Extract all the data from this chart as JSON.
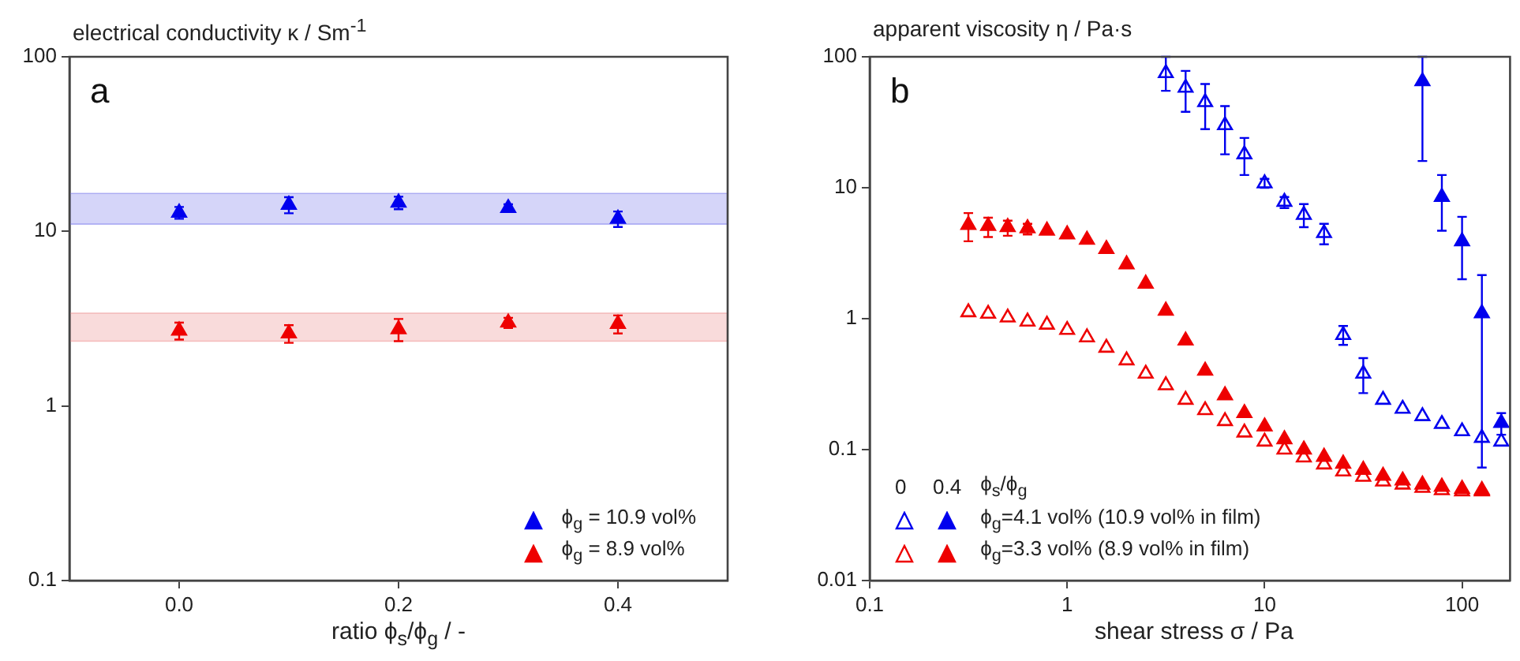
{
  "chart_data": [
    {
      "type": "scatter",
      "ylabel": "electrical conductivity κ / Sm$^{-1}$",
      "xlabel": "ratio ϕ$_{s}$/ϕ$_{g}$ / -",
      "annotations": [
        "a"
      ],
      "x": [
        0,
        0.1,
        0.2,
        0.3,
        0.4
      ],
      "series": [
        {
          "name": "ϕ$_{g}$ = 10.9 vol%",
          "color": "#0000ee",
          "values": [
            12.8,
            14.2,
            14.6,
            13.6,
            11.8
          ],
          "errors": [
            1,
            1.5,
            1.2,
            0.7,
            1.2
          ]
        },
        {
          "name": "ϕ$_{g}$ = 8.9 vol%",
          "color": "#ee0000",
          "values": [
            2.7,
            2.6,
            2.75,
            3.0,
            2.95
          ],
          "errors": [
            0.3,
            0.3,
            0.4,
            0.2,
            0.35
          ]
        }
      ],
      "bands": [
        {
          "axis": "y",
          "from": 11,
          "to": 16.5,
          "color": "#8888ee"
        },
        {
          "axis": "y",
          "from": 2.35,
          "to": 3.4,
          "color": "#ee9999"
        }
      ],
      "xlim": [
        -0.1,
        0.5
      ],
      "xticks": [
        {
          "value": 0,
          "label": "0.0"
        },
        0.2,
        0.4
      ],
      "ylim": [
        0.1,
        100
      ],
      "yticks": [
        0.1,
        1,
        10,
        100
      ],
      "log": "y",
      "grid": false,
      "legend": "bottom right",
      "marker": "triangle"
    },
    {
      "type": "scatter",
      "ylabel": "apparent viscosity η / Pa·s",
      "xlabel": "shear stress σ / Pa",
      "annotations": [
        "b",
        "0",
        "0.4"
      ],
      "legend_title": "ϕ$_{s}$/ϕ$_{g}$",
      "series": [
        {
          "color": "#0000ee",
          "x": [
            3.16,
            3.98,
            5,
            6.3,
            7.9,
            10,
            12.6,
            15.8,
            20,
            25,
            31.6,
            39.8,
            50,
            63,
            79,
            100,
            126,
            158
          ],
          "values": [
            75,
            58,
            45,
            30,
            18,
            10.8,
            7.8,
            6.2,
            4.5,
            0.75,
            0.38,
            0.24,
            0.205,
            0.18,
            0.157,
            0.138,
            0.123,
            0.115
          ],
          "errors": [
            [
              55,
              100
            ],
            [
              38,
              78
            ],
            [
              28,
              62
            ],
            [
              18,
              42
            ],
            [
              12.5,
              24
            ],
            [
              10,
              11.7
            ],
            [
              7,
              8.5
            ],
            [
              5,
              7.5
            ],
            [
              3.7,
              5.3
            ],
            [
              0.63,
              0.88
            ],
            [
              0.27,
              0.5
            ],
            null,
            null,
            null,
            null,
            null,
            null,
            null
          ]
        },
        {
          "name": "ϕ$_{g}$=4.1 vol% (10.9 vol% in film)",
          "color": "#0000ee",
          "x": [
            63,
            79,
            100,
            126,
            158
          ],
          "values": [
            65,
            8.5,
            3.9,
            1.1,
            0.16
          ],
          "errors": [
            [
              16,
              100
            ],
            [
              4.7,
              12.5
            ],
            [
              2,
              6
            ],
            [
              0.073,
              2.15
            ],
            [
              0.13,
              0.19
            ]
          ]
        },
        {
          "color": "#ee0000",
          "x": [
            0.316,
            0.398,
            0.5,
            0.63,
            0.79,
            1,
            1.26,
            1.58,
            2,
            2.5,
            3.16,
            3.98,
            5,
            6.3,
            7.9,
            10,
            12.6,
            15.8,
            20,
            25,
            31.6,
            39.8,
            50,
            63,
            79,
            100,
            126
          ],
          "values": [
            1.12,
            1.09,
            1.02,
            0.95,
            0.9,
            0.82,
            0.72,
            0.6,
            0.48,
            0.38,
            0.31,
            0.24,
            0.2,
            0.165,
            0.135,
            0.115,
            0.1,
            0.087,
            0.077,
            0.068,
            0.062,
            0.057,
            0.054,
            0.051,
            0.049,
            0.048,
            0.048
          ]
        },
        {
          "name": "ϕ$_{g}$=3.3 vol% (8.9 vol% in film)",
          "color": "#ee0000",
          "x": [
            0.316,
            0.398,
            0.5,
            0.63,
            0.79,
            1,
            1.26,
            1.58,
            2,
            2.5,
            3.16,
            3.98,
            5,
            6.3,
            7.9,
            10,
            12.6,
            15.8,
            20,
            25,
            31.6,
            39.8,
            50,
            63,
            79,
            100,
            126
          ],
          "values": [
            5.2,
            5.1,
            5,
            4.9,
            4.7,
            4.4,
            4,
            3.4,
            2.6,
            1.85,
            1.15,
            0.68,
            0.4,
            0.26,
            0.19,
            0.15,
            0.12,
            0.1,
            0.088,
            0.078,
            0.07,
            0.063,
            0.058,
            0.054,
            0.052,
            0.05,
            0.049
          ],
          "errors": [
            [
              3.9,
              6.4
            ],
            [
              4.2,
              5.9
            ],
            [
              4.3,
              5.6
            ],
            [
              4.4,
              5.3
            ],
            null,
            null,
            null,
            null,
            null,
            null,
            null,
            null,
            null,
            null,
            null,
            null,
            null,
            null,
            null,
            null,
            null,
            null,
            null,
            null,
            null,
            null,
            null
          ]
        }
      ],
      "xlim": [
        0.1,
        175
      ],
      "xticks": [
        0.1,
        1,
        10,
        100
      ],
      "ylim": [
        0.01,
        100
      ],
      "yticks": [
        0.01,
        0.1,
        1,
        10,
        100
      ],
      "log": "xy",
      "grid": false,
      "legend": "bottom left",
      "marker": "triangle"
    }
  ]
}
